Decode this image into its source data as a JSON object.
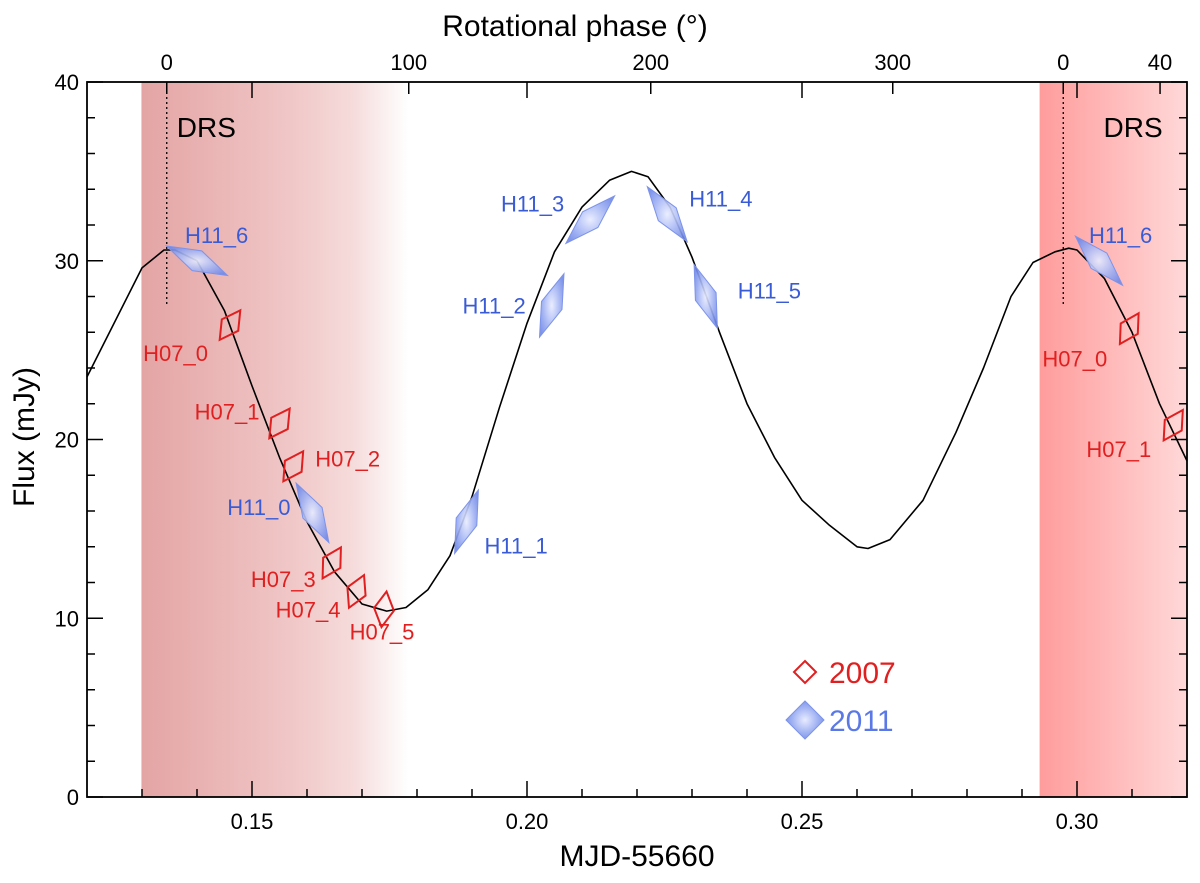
{
  "chart_data": {
    "type": "line",
    "xlabel": "MJD-55660",
    "ylabel": "Flux (mJy)",
    "top_axis_label": "Rotational phase (°)",
    "xlim": [
      0.12,
      0.32
    ],
    "ylim": [
      0,
      40
    ],
    "x_ticks": [
      {
        "value": 0.15,
        "label": "0.15"
      },
      {
        "value": 0.2,
        "label": "0.20"
      },
      {
        "value": 0.25,
        "label": "0.25"
      },
      {
        "value": 0.3,
        "label": "0.30"
      }
    ],
    "y_ticks": [
      {
        "value": 0,
        "label": "0"
      },
      {
        "value": 10,
        "label": "10"
      },
      {
        "value": 20,
        "label": "20"
      },
      {
        "value": 30,
        "label": "30"
      },
      {
        "value": 40,
        "label": "40"
      }
    ],
    "top_ticks": [
      {
        "x": 0.1345,
        "label": "0"
      },
      {
        "x": 0.1785,
        "label": "100"
      },
      {
        "x": 0.2225,
        "label": "200"
      },
      {
        "x": 0.2665,
        "label": "300"
      },
      {
        "x": 0.2975,
        "label": "0"
      },
      {
        "x": 0.3151,
        "label": "40"
      }
    ],
    "model_curve": {
      "x": [
        0.12,
        0.13,
        0.134,
        0.136,
        0.14,
        0.145,
        0.15,
        0.155,
        0.16,
        0.165,
        0.17,
        0.1745,
        0.178,
        0.182,
        0.186,
        0.19,
        0.195,
        0.2,
        0.205,
        0.21,
        0.215,
        0.219,
        0.222,
        0.226,
        0.23,
        0.235,
        0.24,
        0.245,
        0.25,
        0.255,
        0.26,
        0.262,
        0.266,
        0.272,
        0.278,
        0.283,
        0.288,
        0.292,
        0.296,
        0.2985,
        0.3,
        0.305,
        0.31,
        0.315,
        0.32
      ],
      "y": [
        23.5,
        29.6,
        30.6,
        30.6,
        30.0,
        27.2,
        23.0,
        19.0,
        15.4,
        12.6,
        10.8,
        10.4,
        10.6,
        11.6,
        13.5,
        16.8,
        21.8,
        26.5,
        30.5,
        33.0,
        34.5,
        35.0,
        34.7,
        33.0,
        30.2,
        26.0,
        22.0,
        19.0,
        16.6,
        15.2,
        14.0,
        13.9,
        14.4,
        16.6,
        20.4,
        24.0,
        28.0,
        29.9,
        30.5,
        30.7,
        30.6,
        29.0,
        26.0,
        22.0,
        18.8
      ]
    },
    "series": [
      {
        "name": "2007",
        "color": "#e02020",
        "points": [
          {
            "label": "H07_0",
            "x": 0.146,
            "y": 26.4
          },
          {
            "label": "H07_1",
            "x": 0.155,
            "y": 20.9
          },
          {
            "label": "H07_2",
            "x": 0.1575,
            "y": 18.5
          },
          {
            "label": "H07_3",
            "x": 0.1645,
            "y": 13.1
          },
          {
            "label": "H07_4",
            "x": 0.169,
            "y": 11.5
          },
          {
            "label": "H07_5",
            "x": 0.174,
            "y": 10.5
          },
          {
            "label": "H07_0",
            "x": 0.3095,
            "y": 26.2
          },
          {
            "label": "H07_1",
            "x": 0.3175,
            "y": 20.8
          }
        ]
      },
      {
        "name": "2011",
        "color": "#5a78e6",
        "points": [
          {
            "label": "H11_6",
            "x": 0.14,
            "y": 30.0
          },
          {
            "label": "H11_0",
            "x": 0.161,
            "y": 15.9
          },
          {
            "label": "H11_1",
            "x": 0.189,
            "y": 15.4
          },
          {
            "label": "H11_2",
            "x": 0.2045,
            "y": 27.5
          },
          {
            "label": "H11_3",
            "x": 0.2115,
            "y": 32.3
          },
          {
            "label": "H11_4",
            "x": 0.2255,
            "y": 32.6
          },
          {
            "label": "H11_5",
            "x": 0.2325,
            "y": 28.0
          },
          {
            "label": "H11_6",
            "x": 0.304,
            "y": 30.0
          }
        ]
      }
    ],
    "shaded_regions": [
      {
        "label": "DRS",
        "x0": 0.1299,
        "x1": 0.1784,
        "label_x": 0.1345,
        "color": "#e8a8a8",
        "fade": true
      },
      {
        "label": "DRS",
        "x0": 0.2932,
        "x1": 0.32,
        "label_x": 0.303,
        "color": "#ff9e9e",
        "fade": false
      }
    ],
    "phase_zero_lines": [
      0.1345,
      0.2975
    ],
    "legend": {
      "position": "bottom-right",
      "entries": [
        {
          "name": "2007",
          "color": "#e02020",
          "marker": "open-diamond"
        },
        {
          "name": "2011",
          "color": "#5a78e6",
          "marker": "filled-diamond"
        }
      ]
    }
  }
}
